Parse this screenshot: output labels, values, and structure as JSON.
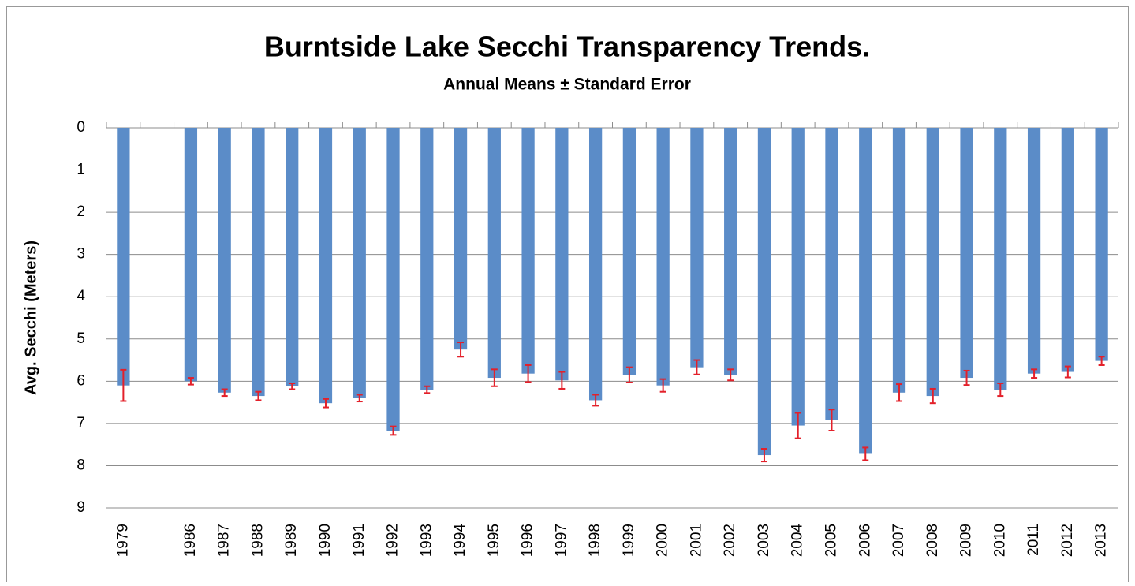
{
  "chart_data": {
    "type": "bar",
    "title": "Burntside Lake Secchi Transparency Trends.",
    "subtitle": "Annual Means ± Standard Error",
    "y_label": "Avg. Secchi (Meters)",
    "categories": [
      "1979",
      null,
      "1986",
      "1987",
      "1988",
      "1989",
      "1990",
      "1991",
      "1992",
      "1993",
      "1994",
      "1995",
      "1996",
      "1997",
      "1998",
      "1999",
      "2000",
      "2001",
      "2002",
      "2003",
      "2004",
      "2005",
      "2006",
      "2007",
      "2008",
      "2009",
      "2010",
      "2011",
      "2012",
      "2013"
    ],
    "values": [
      6.1,
      null,
      6.0,
      6.27,
      6.35,
      6.12,
      6.52,
      6.4,
      7.17,
      6.2,
      5.25,
      5.92,
      5.82,
      5.98,
      6.45,
      5.85,
      6.1,
      5.67,
      5.85,
      7.75,
      7.05,
      6.92,
      7.72,
      6.27,
      6.35,
      5.92,
      6.2,
      5.82,
      5.78,
      5.52
    ],
    "errors": [
      0.37,
      null,
      0.08,
      0.08,
      0.1,
      0.07,
      0.1,
      0.08,
      0.1,
      0.08,
      0.17,
      0.2,
      0.2,
      0.2,
      0.13,
      0.18,
      0.15,
      0.17,
      0.13,
      0.15,
      0.3,
      0.25,
      0.15,
      0.2,
      0.17,
      0.17,
      0.15,
      0.1,
      0.13,
      0.1
    ],
    "color": "#5b8cc8",
    "error_color": "#e3202a",
    "ylim": [
      0,
      9
    ],
    "yticks": [
      0,
      1,
      2,
      3,
      4,
      5,
      6,
      7,
      8,
      9
    ],
    "y_inverted": true,
    "grid": true
  }
}
